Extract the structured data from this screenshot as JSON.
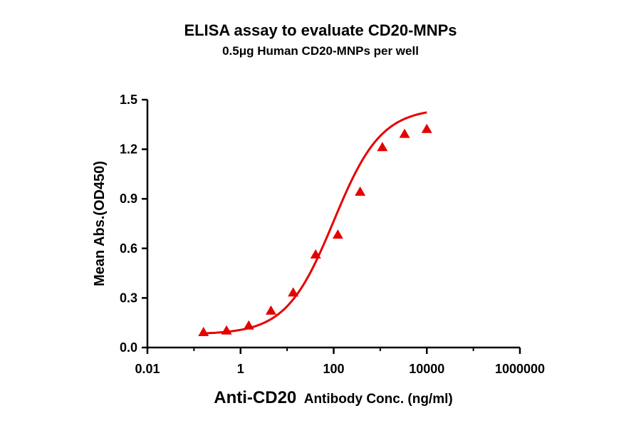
{
  "chart_data": {
    "type": "scatter",
    "title": "ELISA assay to evaluate CD20-MNPs",
    "subtitle": "0.5μg Human CD20-MNPs per well",
    "xlabel_main": "Anti-CD20",
    "xlabel_rest": "Antibody Conc. (ng/ml)",
    "ylabel": "Mean Abs.(OD450)",
    "x_scale": "log",
    "xlim": [
      0.01,
      1000000
    ],
    "ylim": [
      0,
      1.5
    ],
    "x_ticks": [
      {
        "value": 0.01,
        "label": "0.01"
      },
      {
        "value": 1,
        "label": "1"
      },
      {
        "value": 100,
        "label": "100"
      },
      {
        "value": 10000,
        "label": "10000"
      },
      {
        "value": 1000000,
        "label": "1000000"
      }
    ],
    "y_ticks": [
      {
        "value": 0.0,
        "label": "0.0"
      },
      {
        "value": 0.3,
        "label": "0.3"
      },
      {
        "value": 0.6,
        "label": "0.6"
      },
      {
        "value": 0.9,
        "label": "0.9"
      },
      {
        "value": 1.2,
        "label": "1.2"
      },
      {
        "value": 1.5,
        "label": "1.5"
      }
    ],
    "series": [
      {
        "marker": "triangle",
        "color": "#e60000",
        "x": [
          0.16,
          0.5,
          1.5,
          4.5,
          13.5,
          41,
          123,
          370,
          1111,
          3333,
          10000
        ],
        "y": [
          0.09,
          0.1,
          0.13,
          0.22,
          0.33,
          0.56,
          0.68,
          0.94,
          1.21,
          1.29,
          1.32
        ]
      }
    ],
    "fit_curve": {
      "type": "4PL",
      "color": "#e60000",
      "bottom": 0.08,
      "top": 1.45,
      "ec50": 100,
      "hill": 0.85,
      "x_range": [
        0.16,
        10000
      ]
    },
    "grid": false,
    "legend": "none"
  }
}
